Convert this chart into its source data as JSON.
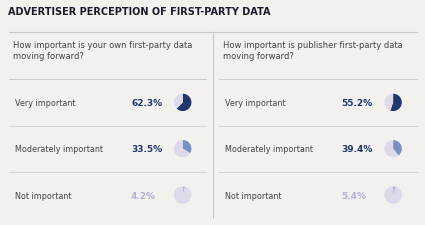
{
  "title": "ADVERTISER PERCEPTION OF FIRST-PARTY DATA",
  "left_question": "How important is your own first-party data\nmoving forward?",
  "right_question": "How important is publisher first-party data\nmoving forward?",
  "left_data": [
    {
      "label": "Very important",
      "pct": 62.3,
      "pct_str": "62.3%",
      "color_main": "#22366e",
      "color_bg": "#dcdaea"
    },
    {
      "label": "Moderately important",
      "pct": 33.5,
      "pct_str": "33.5%",
      "color_main": "#7a8fc2",
      "color_bg": "#dcdaea"
    },
    {
      "label": "Not important",
      "pct": 4.2,
      "pct_str": "4.2%",
      "color_main": "#b5aed8",
      "color_bg": "#dcdaea"
    }
  ],
  "right_data": [
    {
      "label": "Very important",
      "pct": 55.2,
      "pct_str": "55.2%",
      "color_main": "#22366e",
      "color_bg": "#dcdaea"
    },
    {
      "label": "Moderately important",
      "pct": 39.4,
      "pct_str": "39.4%",
      "color_main": "#7a8fc2",
      "color_bg": "#dcdaea"
    },
    {
      "label": "Not important",
      "pct": 5.4,
      "pct_str": "5.4%",
      "color_main": "#b5aed8",
      "color_bg": "#dcdaea"
    }
  ],
  "bg_color": "#f2f1ed",
  "title_color": "#1a1a2e",
  "label_color": "#444444",
  "pct_color_dark": "#22366e",
  "pct_color_light": "#b5aed8",
  "divider_color": "#c8c8c8",
  "title_fontsize": 7.0,
  "question_fontsize": 6.0,
  "label_fontsize": 5.8,
  "pct_fontsize": 6.5
}
